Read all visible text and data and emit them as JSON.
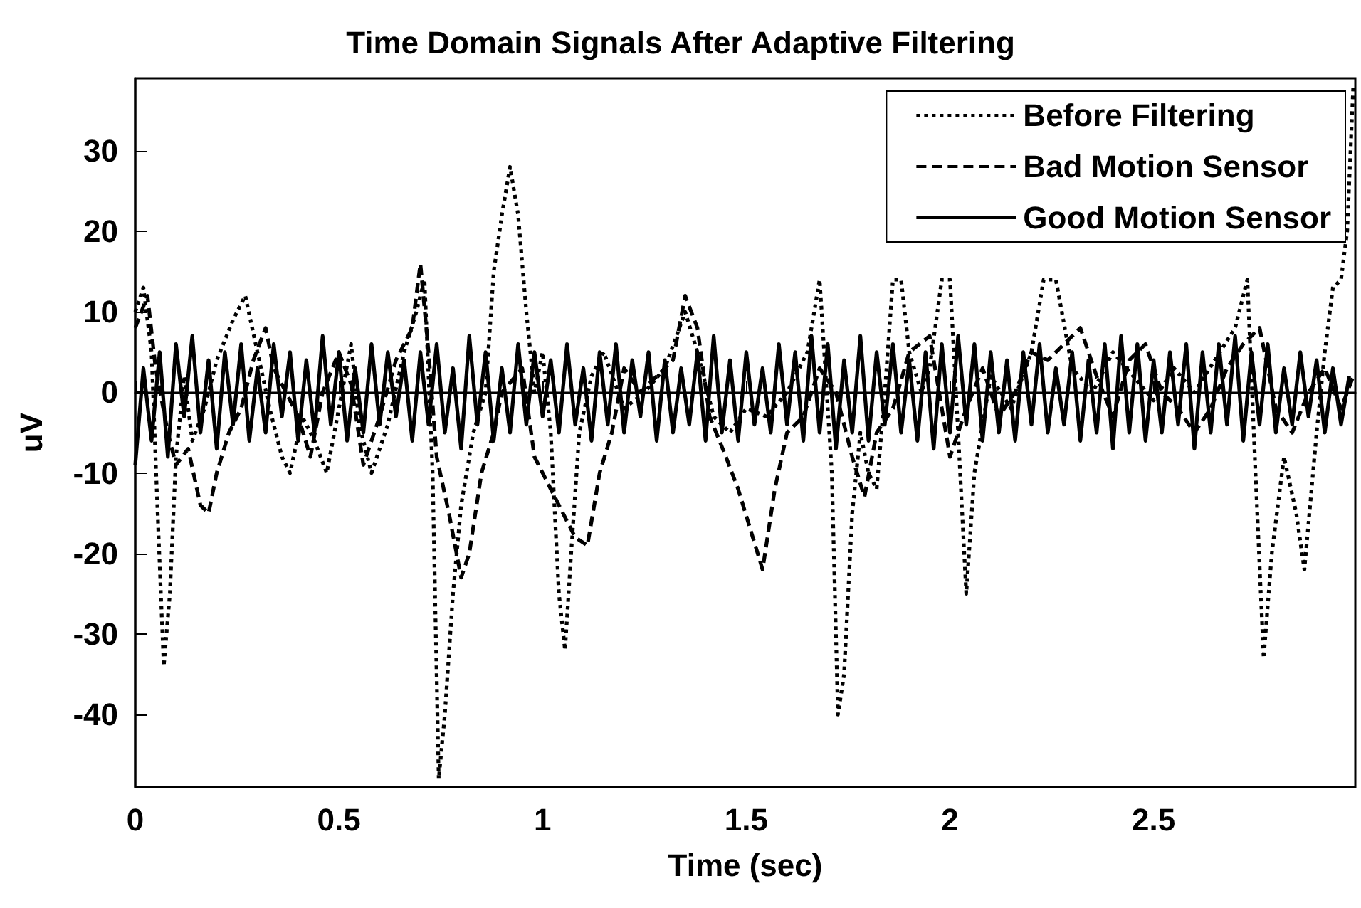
{
  "chart_data": {
    "type": "line",
    "title": "Time Domain Signals After Adaptive Filtering",
    "xlabel": "Time (sec)",
    "ylabel": "uV",
    "xlim": [
      0,
      2.995
    ],
    "xticks": [
      0,
      0.5,
      1,
      1.5,
      2,
      2.5
    ],
    "ylim": [
      -49,
      39
    ],
    "yticks": [
      -40,
      -30,
      -20,
      -10,
      0,
      10,
      20,
      30
    ],
    "legend": "top right",
    "series": [
      {
        "name": "Before Filtering",
        "color": "#000000",
        "line_style": "dotted",
        "x": [
          0,
          0.02,
          0.04,
          0.055,
          0.07,
          0.085,
          0.1,
          0.12,
          0.14,
          0.17,
          0.2,
          0.24,
          0.27,
          0.3,
          0.33,
          0.36,
          0.38,
          0.41,
          0.44,
          0.47,
          0.5,
          0.53,
          0.55,
          0.58,
          0.62,
          0.66,
          0.69,
          0.71,
          0.73,
          0.745,
          0.76,
          0.78,
          0.8,
          0.83,
          0.86,
          0.88,
          0.9,
          0.92,
          0.94,
          0.96,
          0.98,
          1.0,
          1.02,
          1.04,
          1.055,
          1.07,
          1.09,
          1.12,
          1.15,
          1.2,
          1.25,
          1.3,
          1.35,
          1.38,
          1.42,
          1.46,
          1.5,
          1.55,
          1.6,
          1.65,
          1.68,
          1.71,
          1.725,
          1.74,
          1.76,
          1.78,
          1.8,
          1.82,
          1.84,
          1.86,
          1.88,
          1.9,
          1.93,
          1.95,
          1.98,
          2.0,
          2.02,
          2.04,
          2.06,
          2.1,
          2.15,
          2.2,
          2.23,
          2.26,
          2.3,
          2.35,
          2.4,
          2.45,
          2.5,
          2.55,
          2.6,
          2.65,
          2.7,
          2.73,
          2.75,
          2.77,
          2.79,
          2.82,
          2.85,
          2.87,
          2.9,
          2.92,
          2.94,
          2.96,
          2.975,
          2.99
        ],
        "values": [
          10,
          13,
          5,
          -15,
          -34,
          -25,
          -8,
          2,
          -6,
          -2,
          4,
          9,
          12,
          5,
          -2,
          -8,
          -10,
          -3,
          -6,
          -10,
          -2,
          6,
          -4,
          -10,
          -4,
          5,
          10,
          14,
          -10,
          -48,
          -40,
          -25,
          -14,
          -5,
          0,
          15,
          22,
          28,
          22,
          10,
          0,
          5,
          -5,
          -25,
          -32,
          -20,
          -5,
          2,
          5,
          -2,
          0,
          3,
          10,
          5,
          -3,
          -5,
          -2,
          -3,
          0,
          5,
          14,
          -10,
          -40,
          -35,
          -15,
          -5,
          -10,
          -12,
          0,
          14,
          14,
          5,
          0,
          3,
          14,
          14,
          -5,
          -25,
          -10,
          2,
          -2,
          5,
          14,
          14,
          3,
          0,
          5,
          2,
          -1,
          3,
          0,
          4,
          8,
          14,
          -10,
          -33,
          -20,
          -8,
          -15,
          -22,
          -5,
          5,
          13,
          14,
          20,
          38
        ]
      },
      {
        "name": "Bad Motion Sensor",
        "color": "#000000",
        "line_style": "dashed",
        "x": [
          0,
          0.03,
          0.05,
          0.08,
          0.1,
          0.13,
          0.16,
          0.18,
          0.2,
          0.23,
          0.26,
          0.29,
          0.32,
          0.34,
          0.37,
          0.4,
          0.43,
          0.46,
          0.5,
          0.53,
          0.56,
          0.6,
          0.64,
          0.68,
          0.7,
          0.72,
          0.74,
          0.77,
          0.8,
          0.82,
          0.85,
          0.88,
          0.9,
          0.95,
          0.98,
          1.02,
          1.06,
          1.08,
          1.11,
          1.14,
          1.17,
          1.2,
          1.24,
          1.28,
          1.32,
          1.35,
          1.38,
          1.41,
          1.45,
          1.48,
          1.51,
          1.54,
          1.57,
          1.6,
          1.64,
          1.68,
          1.72,
          1.76,
          1.79,
          1.82,
          1.86,
          1.9,
          1.95,
          2.0,
          2.04,
          2.08,
          2.12,
          2.16,
          2.2,
          2.24,
          2.28,
          2.32,
          2.36,
          2.4,
          2.44,
          2.48,
          2.52,
          2.56,
          2.6,
          2.64,
          2.68,
          2.72,
          2.76,
          2.8,
          2.84,
          2.88,
          2.92,
          2.96,
          2.99
        ],
        "values": [
          8,
          12,
          3,
          -5,
          -9,
          -7,
          -14,
          -15,
          -10,
          -5,
          -2,
          4,
          8,
          3,
          0,
          -3,
          -8,
          0,
          5,
          1,
          -9,
          -3,
          4,
          8,
          16,
          5,
          -8,
          -15,
          -23,
          -20,
          -10,
          -5,
          0,
          3,
          -8,
          -12,
          -16,
          -18,
          -19,
          -10,
          -5,
          3,
          0,
          2,
          4,
          12,
          8,
          -3,
          -8,
          -12,
          -17,
          -22,
          -12,
          -5,
          -3,
          3,
          0,
          -8,
          -13,
          -5,
          -2,
          5,
          7,
          -8,
          -2,
          3,
          -3,
          0,
          5,
          4,
          6,
          8,
          2,
          -3,
          4,
          6,
          0,
          -2,
          -5,
          -2,
          3,
          6,
          8,
          -2,
          -5,
          0,
          3,
          -2,
          2
        ]
      },
      {
        "name": "Good Motion Sensor",
        "color": "#000000",
        "line_style": "solid",
        "x": [
          0,
          0.02,
          0.04,
          0.06,
          0.08,
          0.1,
          0.12,
          0.14,
          0.16,
          0.18,
          0.2,
          0.22,
          0.24,
          0.26,
          0.28,
          0.3,
          0.32,
          0.34,
          0.36,
          0.38,
          0.4,
          0.42,
          0.44,
          0.46,
          0.48,
          0.5,
          0.52,
          0.54,
          0.56,
          0.58,
          0.6,
          0.62,
          0.64,
          0.66,
          0.68,
          0.7,
          0.72,
          0.74,
          0.76,
          0.78,
          0.8,
          0.82,
          0.84,
          0.86,
          0.88,
          0.9,
          0.92,
          0.94,
          0.96,
          0.98,
          1.0,
          1.02,
          1.04,
          1.06,
          1.08,
          1.1,
          1.12,
          1.14,
          1.16,
          1.18,
          1.2,
          1.22,
          1.24,
          1.26,
          1.28,
          1.3,
          1.32,
          1.34,
          1.36,
          1.38,
          1.4,
          1.42,
          1.44,
          1.46,
          1.48,
          1.5,
          1.52,
          1.54,
          1.56,
          1.58,
          1.6,
          1.62,
          1.64,
          1.66,
          1.68,
          1.7,
          1.72,
          1.74,
          1.76,
          1.78,
          1.8,
          1.82,
          1.84,
          1.86,
          1.88,
          1.9,
          1.92,
          1.94,
          1.96,
          1.98,
          2.0,
          2.02,
          2.04,
          2.06,
          2.08,
          2.1,
          2.12,
          2.14,
          2.16,
          2.18,
          2.2,
          2.22,
          2.24,
          2.26,
          2.28,
          2.3,
          2.32,
          2.34,
          2.36,
          2.38,
          2.4,
          2.42,
          2.44,
          2.46,
          2.48,
          2.5,
          2.52,
          2.54,
          2.56,
          2.58,
          2.6,
          2.62,
          2.64,
          2.66,
          2.68,
          2.7,
          2.72,
          2.74,
          2.76,
          2.78,
          2.8,
          2.82,
          2.84,
          2.86,
          2.88,
          2.9,
          2.92,
          2.94,
          2.96,
          2.98
        ],
        "values": [
          -9,
          3,
          -6,
          5,
          -8,
          6,
          -3,
          7,
          -5,
          4,
          -7,
          5,
          -4,
          6,
          -6,
          3,
          -5,
          6,
          -3,
          5,
          -6,
          4,
          -5,
          7,
          -4,
          5,
          -6,
          3,
          -5,
          6,
          -4,
          5,
          -3,
          4,
          -6,
          5,
          -4,
          6,
          -5,
          3,
          -7,
          7,
          -4,
          5,
          -6,
          3,
          -5,
          6,
          -4,
          5,
          -3,
          4,
          -5,
          6,
          -4,
          3,
          -6,
          5,
          -4,
          6,
          -5,
          4,
          -3,
          5,
          -6,
          4,
          -5,
          3,
          -4,
          5,
          -6,
          7,
          -5,
          4,
          -6,
          5,
          -4,
          3,
          -5,
          6,
          -4,
          5,
          -6,
          7,
          -5,
          6,
          -7,
          4,
          -5,
          7,
          -6,
          5,
          -4,
          6,
          -5,
          4,
          -6,
          5,
          -7,
          6,
          -5,
          7,
          -4,
          6,
          -6,
          5,
          -5,
          4,
          -6,
          5,
          -4,
          6,
          -5,
          3,
          -4,
          5,
          -6,
          4,
          -5,
          6,
          -7,
          7,
          -5,
          6,
          -6,
          4,
          -5,
          5,
          -4,
          6,
          -7,
          5,
          -5,
          6,
          -4,
          7,
          -6,
          5,
          -4,
          6,
          -5,
          3,
          -4,
          5,
          -3,
          4,
          -5,
          3,
          -4,
          2
        ]
      }
    ]
  }
}
